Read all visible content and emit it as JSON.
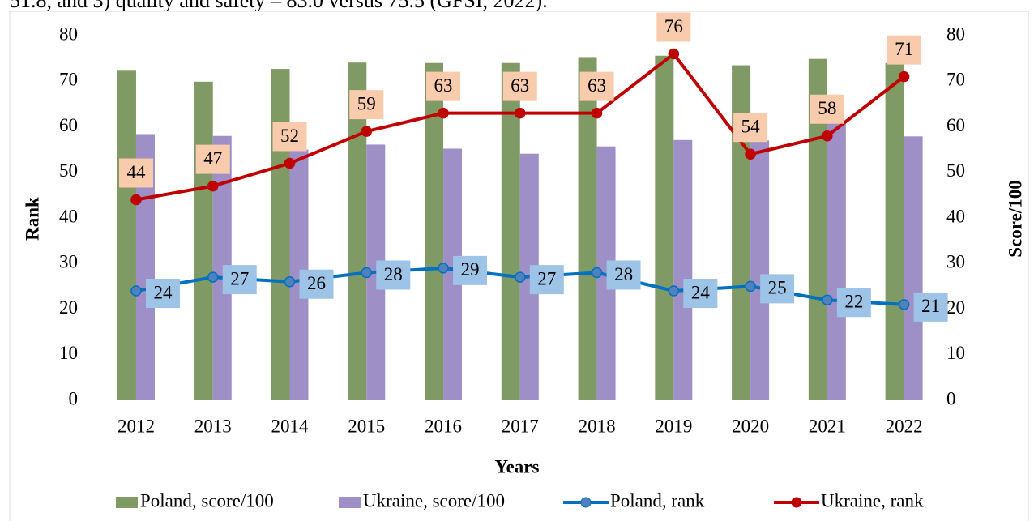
{
  "context_text": "51.8, and 3) quality and safety – 83.0 versus 75.5 (GFSI, 2022).",
  "chart_data": {
    "type": "bar_line",
    "xlabel": "Years",
    "ylabel": "Rank",
    "y2label": "Score/100",
    "categories": [
      "2012",
      "2013",
      "2014",
      "2015",
      "2016",
      "2017",
      "2018",
      "2019",
      "2020",
      "2021",
      "2022"
    ],
    "ylim": [
      0,
      80
    ],
    "yticks": [
      0,
      10,
      20,
      30,
      40,
      50,
      60,
      70,
      80
    ],
    "y2lim": [
      0,
      80
    ],
    "y2ticks": [
      0,
      10,
      20,
      30,
      40,
      50,
      60,
      70,
      80
    ],
    "grid": false,
    "legend": "bottom",
    "series": [
      {
        "name": "Poland, score/100",
        "kind": "bar",
        "axis": "y2",
        "color": "#7f9a65",
        "values": [
          72.3,
          69.9,
          72.7,
          74.1,
          74.0,
          74.0,
          75.3,
          75.6,
          73.5,
          74.9,
          74.0
        ]
      },
      {
        "name": "Ukraine, score/100",
        "kind": "bar",
        "axis": "y2",
        "color": "#9e8fc7",
        "values": [
          58.4,
          58.0,
          55.0,
          56.1,
          55.2,
          54.1,
          55.7,
          57.1,
          57.0,
          61.0,
          57.9
        ]
      },
      {
        "name": "Poland, rank",
        "kind": "line",
        "color": "#0070c0",
        "marker": "#4f81bd",
        "labelbox": "#9dc3e6",
        "values": [
          24,
          27,
          26,
          28,
          29,
          27,
          28,
          24,
          25,
          22,
          21
        ]
      },
      {
        "name": "Ukraine, rank",
        "kind": "line",
        "color": "#c00000",
        "marker": "#c00000",
        "labelbox": "#f8cbad",
        "values": [
          44,
          47,
          52,
          59,
          63,
          63,
          63,
          76,
          54,
          58,
          71
        ]
      }
    ]
  }
}
